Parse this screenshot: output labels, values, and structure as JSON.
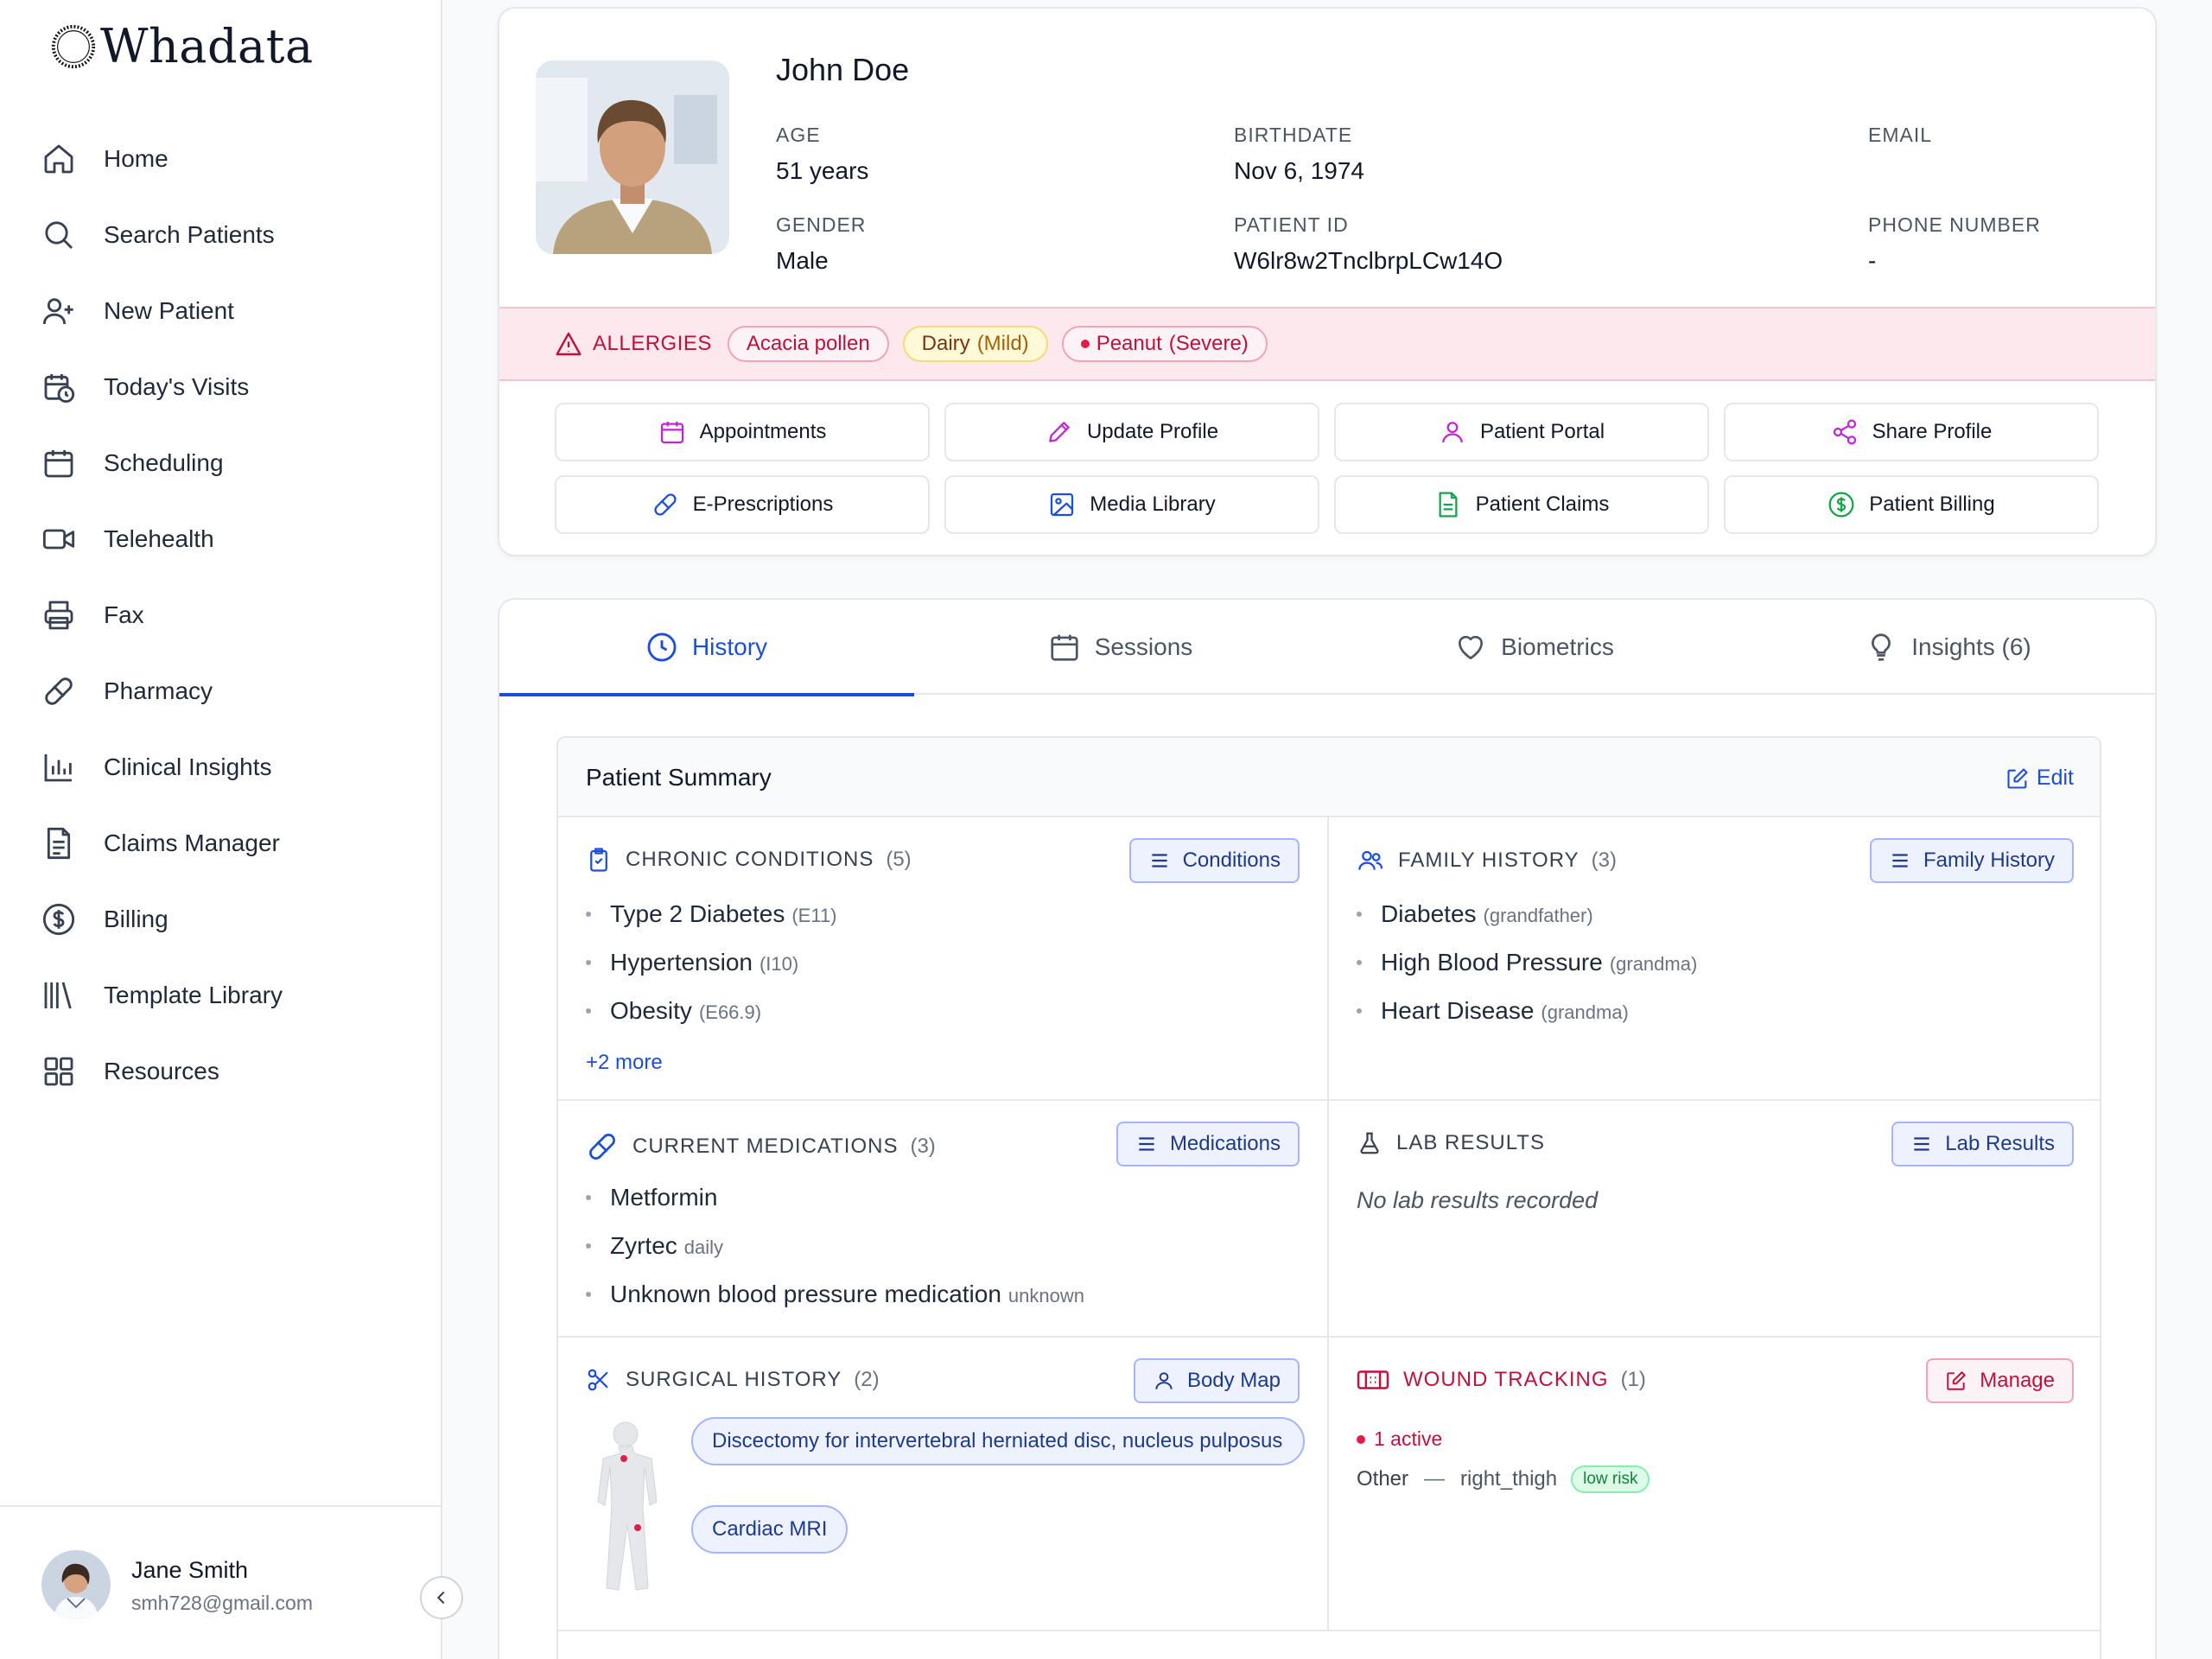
{
  "app": {
    "name": "Whadata"
  },
  "sidebar": {
    "items": [
      {
        "label": "Home",
        "icon": "home-icon"
      },
      {
        "label": "Search Patients",
        "icon": "search-icon"
      },
      {
        "label": "New Patient",
        "icon": "user-plus-icon"
      },
      {
        "label": "Today's Visits",
        "icon": "calendar-clock-icon"
      },
      {
        "label": "Scheduling",
        "icon": "calendar-icon"
      },
      {
        "label": "Telehealth",
        "icon": "video-icon"
      },
      {
        "label": "Fax",
        "icon": "printer-icon"
      },
      {
        "label": "Pharmacy",
        "icon": "pill-icon"
      },
      {
        "label": "Clinical Insights",
        "icon": "bar-chart-icon"
      },
      {
        "label": "Claims Manager",
        "icon": "document-icon"
      },
      {
        "label": "Billing",
        "icon": "dollar-icon"
      },
      {
        "label": "Template Library",
        "icon": "library-icon"
      },
      {
        "label": "Resources",
        "icon": "grid-icon"
      }
    ],
    "user": {
      "name": "Jane Smith",
      "email": "smh728@gmail.com"
    }
  },
  "patient": {
    "name": "John Doe",
    "fields": {
      "age_label": "AGE",
      "age": "51 years",
      "birthdate_label": "BIRTHDATE",
      "birthdate": "Nov 6, 1974",
      "email_label": "EMAIL",
      "email": "",
      "gender_label": "GENDER",
      "gender": "Male",
      "patient_id_label": "PATIENT ID",
      "patient_id": "W6lr8w2TnclbrpLCw14O",
      "phone_label": "PHONE NUMBER",
      "phone": "-"
    },
    "allergies": {
      "title": "ALLERGIES",
      "items": [
        {
          "name": "Acacia pollen",
          "severity": ""
        },
        {
          "name": "Dairy",
          "severity": "(Mild)"
        },
        {
          "name": "Peanut",
          "severity": "(Severe)"
        }
      ]
    },
    "actions": [
      {
        "label": "Appointments",
        "icon": "calendar-icon",
        "color": "#c026d3"
      },
      {
        "label": "Update Profile",
        "icon": "pencil-icon",
        "color": "#c026d3"
      },
      {
        "label": "Patient Portal",
        "icon": "user-icon",
        "color": "#c026d3"
      },
      {
        "label": "Share Profile",
        "icon": "share-icon",
        "color": "#c026d3"
      },
      {
        "label": "E-Prescriptions",
        "icon": "pill-icon",
        "color": "#1d4ed8"
      },
      {
        "label": "Media Library",
        "icon": "image-icon",
        "color": "#1d4ed8"
      },
      {
        "label": "Patient Claims",
        "icon": "file-icon",
        "color": "#16a34a"
      },
      {
        "label": "Patient Billing",
        "icon": "dollar-icon",
        "color": "#16a34a"
      }
    ]
  },
  "tabs": [
    {
      "label": "History",
      "icon": "clock-icon",
      "active": true
    },
    {
      "label": "Sessions",
      "icon": "calendar-icon",
      "active": false
    },
    {
      "label": "Biometrics",
      "icon": "heart-icon",
      "active": false
    },
    {
      "label": "Insights (6)",
      "icon": "lightbulb-icon",
      "active": false
    }
  ],
  "summary": {
    "title": "Patient Summary",
    "edit_label": "Edit",
    "chronic": {
      "title": "CHRONIC CONDITIONS",
      "count": "(5)",
      "button": "Conditions",
      "items": [
        {
          "name": "Type 2 Diabetes",
          "code": "(E11)"
        },
        {
          "name": "Hypertension",
          "code": "(I10)"
        },
        {
          "name": "Obesity",
          "code": "(E66.9)"
        }
      ],
      "more": "+2 more"
    },
    "family": {
      "title": "FAMILY HISTORY",
      "count": "(3)",
      "button": "Family History",
      "items": [
        {
          "name": "Diabetes",
          "rel": "(grandfather)"
        },
        {
          "name": "High Blood Pressure",
          "rel": "(grandma)"
        },
        {
          "name": "Heart Disease",
          "rel": "(grandma)"
        }
      ]
    },
    "medications": {
      "title": "CURRENT MEDICATIONS",
      "count": "(3)",
      "button": "Medications",
      "items": [
        {
          "name": "Metformin",
          "note": ""
        },
        {
          "name": "Zyrtec",
          "note": "daily"
        },
        {
          "name": "Unknown blood pressure medication",
          "note": "unknown"
        }
      ]
    },
    "labs": {
      "title": "LAB RESULTS",
      "button": "Lab Results",
      "empty": "No lab results recorded"
    },
    "surgical": {
      "title": "SURGICAL HISTORY",
      "count": "(2)",
      "button": "Body Map",
      "items": [
        "Discectomy for intervertebral herniated disc, nucleus pulposus",
        "Cardiac MRI"
      ]
    },
    "wounds": {
      "title": "WOUND TRACKING",
      "count": "(1)",
      "button": "Manage",
      "active": "1 active",
      "entry": {
        "type": "Other",
        "location": "right_thigh",
        "risk": "low risk"
      }
    }
  }
}
